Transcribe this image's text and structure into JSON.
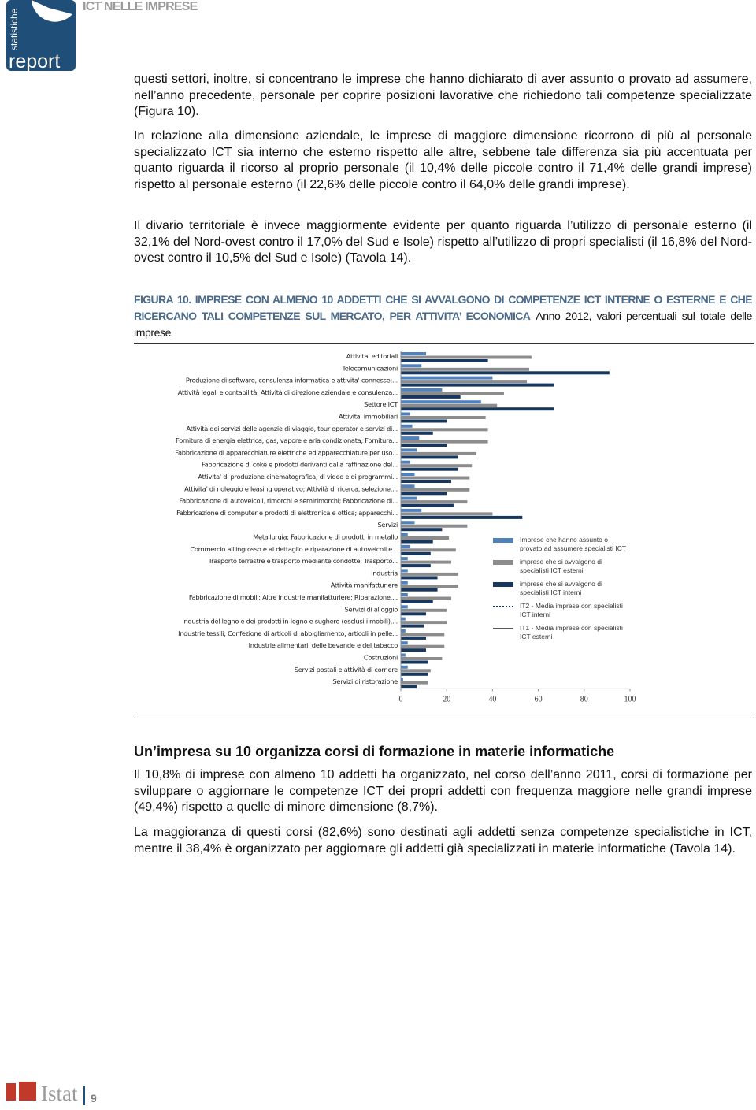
{
  "header": {
    "logo_top": "statistiche",
    "logo_bottom": "report",
    "title": "ICT NELLE IMPRESE"
  },
  "paragraphs": [
    "questi settori, inoltre, si concentrano le imprese che hanno dichiarato di aver assunto o provato ad assumere, nell’anno precedente, personale per coprire posizioni lavorative che richiedono tali competenze specializzate (Figura 10).",
    "In relazione alla dimensione aziendale, le imprese di maggiore dimensione ricorrono di più al personale specializzato ICT sia interno che esterno rispetto alle altre, sebbene tale differenza sia più accentuata per quanto riguarda il ricorso al proprio personale (il 10,4% delle piccole contro il 71,4% delle grandi imprese) rispetto al personale esterno (il 22,6% delle piccole contro il 64,0% delle grandi imprese).",
    "Il divario territoriale è invece maggiormente evidente per quanto riguarda l’utilizzo di personale esterno (il 32,1% del Nord-ovest contro il 17,0% del Sud e Isole) rispetto all’utilizzo di propri specialisti (il 16,8% del Nord-ovest contro il 10,5% del Sud e Isole) (Tavola 14)."
  ],
  "figure": {
    "caption_title": "FIGURA 10. IMPRESE CON ALMENO 10 ADDETTI CHE SI AVVALGONO DI COMPETENZE ICT INTERNE O ESTERNE E CHE RICERCANO TALI COMPETENZE SUL MERCATO, PER ATTIVITA’ ECONOMICA",
    "caption_note": "Anno 2012, valori percentuali sul totale delle imprese"
  },
  "chart_data": {
    "type": "hbar",
    "categories": [
      "Attivita' editoriali",
      "Telecomunicazioni",
      "Produzione di software, consulenza informatica e attivita' connesse;...",
      "Attività legali e contabilità; Attività di direzione aziendale e consulenza...",
      "Settore ICT",
      "Attivita' immobiliari",
      "Attività dei servizi delle agenzie di viaggio, tour operator e servizi di...",
      "Fornitura di energia elettrica, gas, vapore e aria condizionata; Fornitura...",
      "Fabbricazione di apparecchiature elettriche ed apparecchiature per uso...",
      "Fabbricazione di coke e prodotti derivanti dalla raffinazione del...",
      "Attivita' di produzione cinematografica, di video e di programmi...",
      "Attivita' di noleggio e leasing operativo; Attività di ricerca, selezione,...",
      "Fabbricazione di autoveicoli, rimorchi e semirimorchi; Fabbricazione di...",
      "Fabbricazione di computer e prodotti di elettronica e ottica; apparecchi...",
      "Servizi",
      "Metallurgia; Fabbricazione di prodotti in metallo",
      "Commercio all'ingrosso e al dettaglio e riparazione di autoveicoli e...",
      "Trasporto terrestre e trasporto mediante condotte; Trasporto...",
      "Industria",
      "Attività manifatturiere",
      "Fabbricazione di mobili; Altre industrie manifatturiere; Riparazione,...",
      "Servizi di alloggio",
      "Industria del legno e dei prodotti in legno e sughero (esclusi i mobili),...",
      "Industrie tessili; Confezione di articoli di abbigliamento, articoli in pelle...",
      "Industrie alimentari, delle bevande e del tabacco",
      "Costruzioni",
      "Servizi postali e attività di corriere",
      "Servizi di ristorazione"
    ],
    "series": [
      {
        "name": "Imprese che hanno assunto o provato ad assumere specialisti ICT",
        "color": "#4f81bd",
        "values": [
          11,
          9,
          40,
          18,
          35,
          4,
          5,
          8,
          7,
          4,
          6,
          6,
          7,
          9,
          6,
          3,
          4,
          3,
          3,
          3,
          3,
          3,
          2,
          2,
          3,
          2,
          3,
          1
        ]
      },
      {
        "name": "imprese che si avvalgono di specialisti ICT esterni",
        "color": "#8c8c8c",
        "values": [
          57,
          56,
          55,
          45,
          42,
          37,
          38,
          38,
          33,
          31,
          30,
          30,
          29,
          40,
          29,
          21,
          24,
          22,
          25,
          25,
          22,
          20,
          20,
          19,
          19,
          18,
          13,
          12
        ]
      },
      {
        "name": "imprese che si avvalgono di specialisti ICT interni",
        "color": "#17375e",
        "values": [
          38,
          91,
          67,
          26,
          67,
          20,
          14,
          20,
          25,
          25,
          22,
          20,
          23,
          53,
          18,
          14,
          13,
          13,
          16,
          16,
          14,
          11,
          10,
          11,
          11,
          12,
          12,
          7
        ]
      }
    ],
    "reference_lines": [
      {
        "name": "IT2 - Media imprese con specialisti ICT interni",
        "color": "#17375e",
        "style": "dotted"
      },
      {
        "name": "IT1 - Media imprese con specialisti ICT esterni",
        "color": "#595959",
        "style": "solid"
      }
    ],
    "xlim": [
      0,
      100
    ],
    "xticks": [
      0,
      20,
      40,
      60,
      80,
      100
    ]
  },
  "section": {
    "heading": "Un’impresa su 10 organizza corsi di formazione in materie informatiche",
    "paragraphs": [
      "Il 10,8% di imprese con almeno 10 addetti ha organizzato, nel corso dell’anno 2011, corsi di formazione per sviluppare o aggiornare le competenze ICT dei propri addetti con frequenza maggiore nelle grandi imprese (49,4%) rispetto a quelle di minore dimensione (8,7%).",
      "La maggioranza di questi corsi (82,6%) sono destinati agli addetti senza competenze specialistiche in ICT, mentre il 38,4% è organizzato per aggiornare gli addetti già specializzati in materie informatiche (Tavola 14)."
    ]
  },
  "footer": {
    "brand": "Istat",
    "page": "9"
  }
}
